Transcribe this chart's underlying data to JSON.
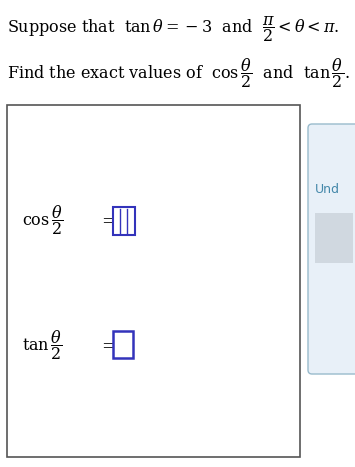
{
  "bg_color": "#ffffff",
  "text_color": "#000000",
  "panel_border": "#555555",
  "box_color": "#3333bb",
  "box_fill": "#ffffff",
  "right_panel_bg": "#e8f0f8",
  "right_panel_border": "#99bbcc",
  "right_label_color": "#4488aa",
  "grey_box_color": "#d0d8e0",
  "font_size_title": 11.5,
  "font_size_labels": 11.5,
  "title1": "Suppose that  $\\tan\\theta = -3$  and  $\\dfrac{\\pi}{2} < \\theta < \\pi$.",
  "title2": "Find the exact values of  $\\cos\\dfrac{\\theta}{2}$  and  $\\tan\\dfrac{\\theta}{2}$."
}
